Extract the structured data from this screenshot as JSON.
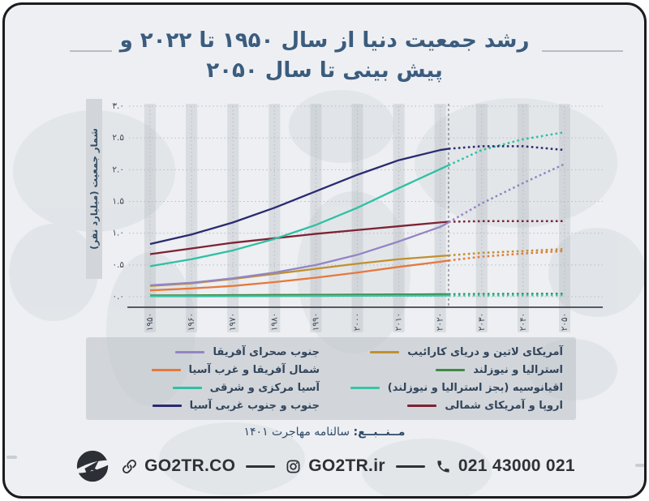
{
  "title": {
    "line1": "رشد جمعیت دنیا از سال ۱۹۵۰ تا ۲۰۲۲ و",
    "line2": "پیش بینی تا سال ۲۰۵۰"
  },
  "chart_data": {
    "type": "line",
    "title": "رشد جمعیت دنیا از سال ۱۹۵۰ تا ۲۰۲۲ و پیش بینی تا سال ۲۰۵۰",
    "xlabel": "",
    "ylabel": "شمار جمعیت (میلیارد نفر)",
    "xlim": [
      1950,
      2050
    ],
    "ylim": [
      0,
      3
    ],
    "grid": true,
    "legend_position": "bottom",
    "forecast_start": 2022,
    "x_ticks": [
      1950,
      1960,
      1970,
      1980,
      1990,
      2000,
      2010,
      2020,
      2030,
      2040,
      2050
    ],
    "x_tick_labels": [
      "۱۹۵۰",
      "۱۹۶۰",
      "۱۹۷۰",
      "۱۹۸۰",
      "۱۹۹۰",
      "۲۰۰۰",
      "۲۰۱۰",
      "۲۰۲۰",
      "۲۰۳۰",
      "۲۰۴۰",
      "۲۰۵۰"
    ],
    "y_ticks": [
      0,
      0.5,
      1.0,
      1.5,
      2.0,
      2.5,
      3.0
    ],
    "y_tick_labels": [
      "۰.۰",
      "۰.۵",
      "۱.۰",
      "۱.۵",
      "۲.۰",
      "۲.۵",
      "۳.۰"
    ],
    "x_solid": [
      1950,
      1960,
      1970,
      1980,
      1990,
      2000,
      2010,
      2020,
      2022
    ],
    "x_forecast": [
      2022,
      2030,
      2040,
      2050
    ],
    "series": [
      {
        "name": "آمریکای لاتین و دریای کارائیب",
        "color": "#c0912f",
        "solid": [
          0.17,
          0.21,
          0.28,
          0.36,
          0.44,
          0.52,
          0.59,
          0.64,
          0.65
        ],
        "forecast": [
          0.65,
          0.69,
          0.72,
          0.75
        ]
      },
      {
        "name": "استرالیا و نیوزلند",
        "color": "#3f8a45",
        "solid": [
          0.02,
          0.022,
          0.025,
          0.028,
          0.03,
          0.033,
          0.036,
          0.039,
          0.04
        ],
        "forecast": [
          0.04,
          0.043,
          0.045,
          0.047
        ]
      },
      {
        "name": "اقیانوسیه (بجز استرالیا و نیوزلند)",
        "color": "#3bc3a8",
        "solid": [
          0.006,
          0.007,
          0.008,
          0.01,
          0.012,
          0.014,
          0.016,
          0.018,
          0.019
        ],
        "forecast": [
          0.019,
          0.021,
          0.022,
          0.024
        ]
      },
      {
        "name": "اروپا و آمریکای شمالی",
        "color": "#7d2334",
        "solid": [
          0.67,
          0.76,
          0.85,
          0.92,
          0.99,
          1.05,
          1.11,
          1.17,
          1.18
        ],
        "forecast": [
          1.18,
          1.19,
          1.19,
          1.19
        ]
      },
      {
        "name": "جنوب صحرای آفریقا",
        "color": "#9385c5",
        "solid": [
          0.18,
          0.22,
          0.29,
          0.38,
          0.5,
          0.66,
          0.87,
          1.1,
          1.17
        ],
        "forecast": [
          1.17,
          1.47,
          1.79,
          2.09
        ]
      },
      {
        "name": "شمال آفریقا و غرب آسیا",
        "color": "#e5793d",
        "solid": [
          0.1,
          0.13,
          0.17,
          0.23,
          0.3,
          0.38,
          0.47,
          0.55,
          0.57
        ],
        "forecast": [
          0.57,
          0.63,
          0.68,
          0.72
        ]
      },
      {
        "name": "آسیا مرکزی و شرقی",
        "color": "#2fc0a4",
        "solid": [
          0.48,
          0.59,
          0.73,
          0.91,
          1.13,
          1.4,
          1.71,
          2.01,
          2.07
        ],
        "forecast": [
          2.07,
          2.31,
          2.48,
          2.59
        ]
      },
      {
        "name": "جنوب و جنوب غربی آسیا",
        "color": "#2a2a70",
        "solid": [
          0.83,
          0.98,
          1.17,
          1.4,
          1.66,
          1.92,
          2.15,
          2.31,
          2.33
        ],
        "forecast": [
          2.33,
          2.37,
          2.37,
          2.31
        ]
      }
    ]
  },
  "source": {
    "label": "مــنــبــع:",
    "text": " سالنامه مهاجرت ۱۴۰۱"
  },
  "footer": {
    "website": "GO2TR.CO",
    "instagram": "GO2TR.ir",
    "phone": "021 43000 021",
    "logo": "go2tr-bird-logo"
  },
  "colors": {
    "title": "#3b5c7e",
    "legend_bg": "rgba(188,193,199,0.55)",
    "band": "rgba(174,179,186,0.32)",
    "grid": "#b6bcc3",
    "axis": "#41464d",
    "forecast_divider": "#7c838c"
  }
}
